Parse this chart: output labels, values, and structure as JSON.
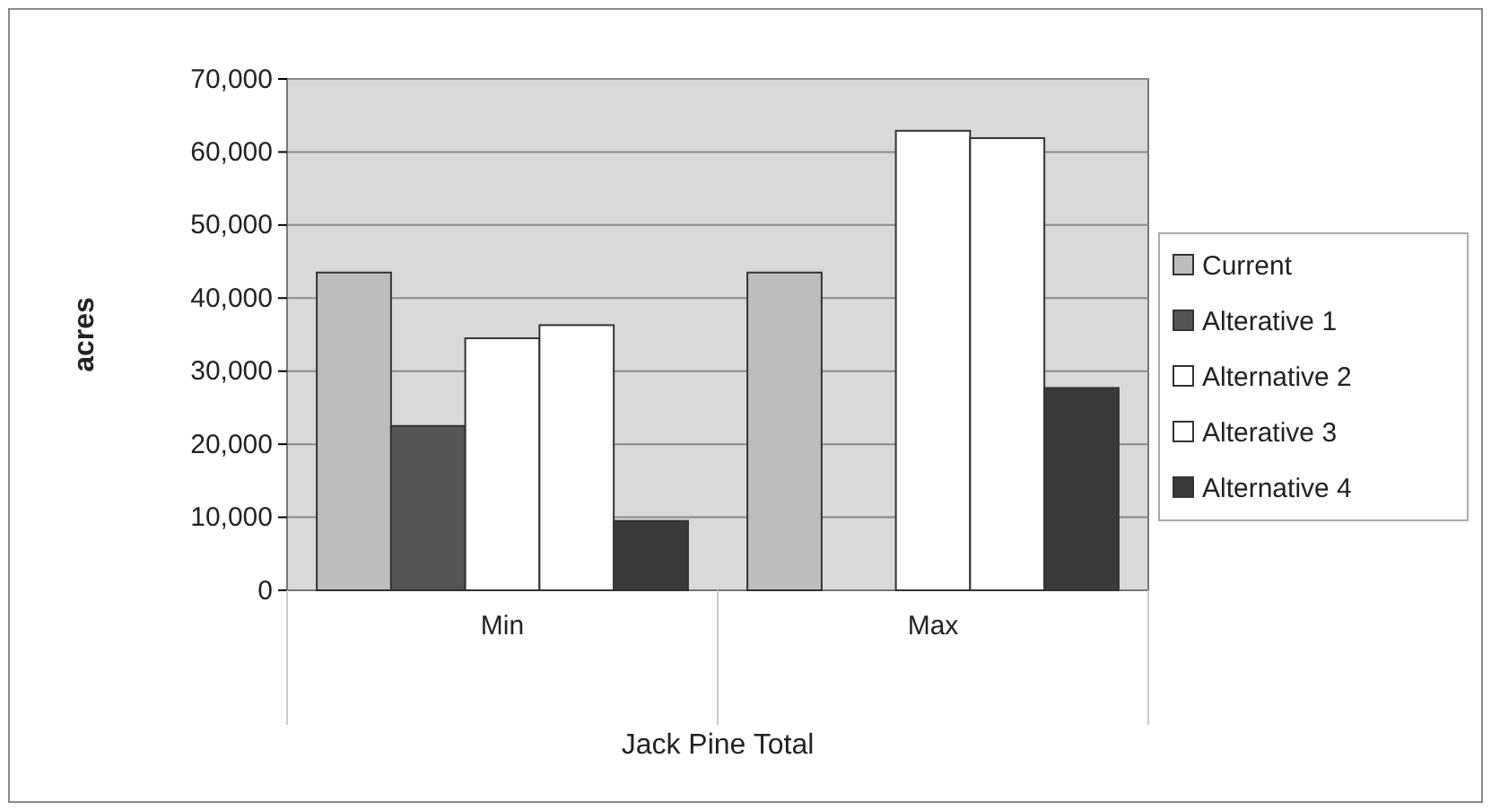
{
  "chart_data": {
    "type": "bar",
    "xlabel": "Jack Pine Total",
    "ylabel": "acres",
    "categories": [
      "Min",
      "Max"
    ],
    "series": [
      {
        "name": "Current",
        "color": "#bdbdbd",
        "values": [
          43500,
          43500
        ]
      },
      {
        "name": "Alterative 1",
        "color": "#555555",
        "values": [
          22500,
          0
        ]
      },
      {
        "name": "Alternative 2",
        "color": "#ffffff",
        "values": [
          34500,
          62900
        ]
      },
      {
        "name": "Alterative 3",
        "color": "#ffffff",
        "values": [
          36300,
          61900
        ]
      },
      {
        "name": "Alternative 4",
        "color": "#3a3a3a",
        "values": [
          9500,
          27700
        ]
      }
    ],
    "ylim": [
      0,
      70000
    ],
    "yticks": [
      {
        "value": 0,
        "label": "0"
      },
      {
        "value": 10000,
        "label": "10,000"
      },
      {
        "value": 20000,
        "label": "20,000"
      },
      {
        "value": 30000,
        "label": "30,000"
      },
      {
        "value": 40000,
        "label": "40,000"
      },
      {
        "value": 50000,
        "label": "50,000"
      },
      {
        "value": 60000,
        "label": "60,000"
      },
      {
        "value": 70000,
        "label": "70,000"
      }
    ],
    "grid": "y",
    "legend": "right"
  }
}
